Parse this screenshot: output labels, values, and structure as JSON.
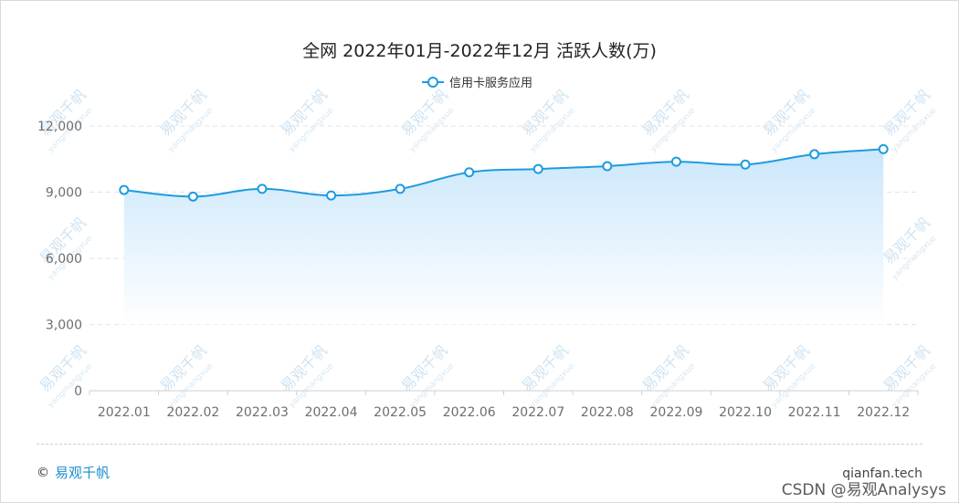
{
  "chart_data": {
    "type": "area",
    "title": "全网 2022年01月-2022年12月 活跃人数(万)",
    "categories": [
      "2022.01",
      "2022.02",
      "2022.03",
      "2022.04",
      "2022.05",
      "2022.06",
      "2022.07",
      "2022.08",
      "2022.09",
      "2022.10",
      "2022.11",
      "2022.12"
    ],
    "series": [
      {
        "name": "信用卡服务应用",
        "values": [
          9100,
          8800,
          9150,
          8850,
          9150,
          9900,
          10050,
          10180,
          10380,
          10250,
          10720,
          10950
        ]
      }
    ],
    "y_ticks": [
      "12,000",
      "9,000",
      "6,000",
      "3,000",
      "0"
    ],
    "ylim": [
      0,
      12000
    ],
    "legend_position": "top-center",
    "grid": true,
    "colors": {
      "line": "#1e9be0",
      "fill_top": "#c8e6fb",
      "marker_fill": "#ffffff"
    }
  },
  "watermark": {
    "brand": "易观千帆",
    "sub": "yangmangxue",
    "color": "#cfe3f2"
  },
  "footer": {
    "copyright_symbol": "©",
    "brand": "易观千帆",
    "site": "qianfan.tech",
    "credit": "CSDN @易观Analysys"
  }
}
